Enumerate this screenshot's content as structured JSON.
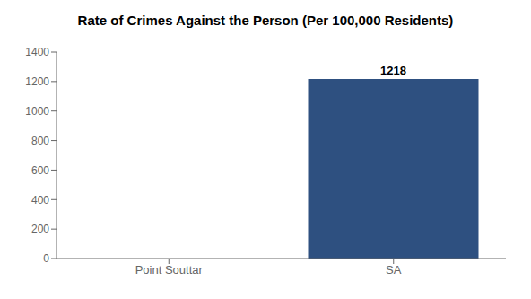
{
  "chart_data": {
    "type": "bar",
    "title": "Rate of Crimes Against the Person (Per 100,000 Residents)",
    "categories": [
      "Point Souttar",
      "SA"
    ],
    "values": [
      0,
      1218
    ],
    "color": "#2e5080",
    "ylim": [
      0,
      1400
    ],
    "yticks": [
      0,
      200,
      400,
      600,
      800,
      1000,
      1200,
      1400
    ],
    "grid": false,
    "data_labels": true
  }
}
